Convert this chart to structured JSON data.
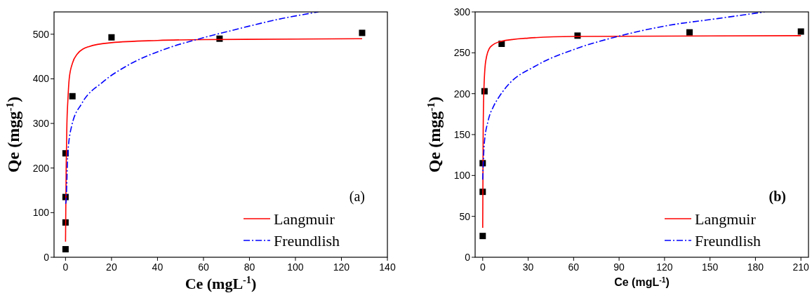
{
  "chart_data": [
    {
      "type": "scatter",
      "xlabel": "Ce (mgL$^{-1}$)",
      "ylabel": "Qe (mgg$^{-1}$)",
      "annotations": [
        "(a)"
      ],
      "xlim": [
        -5,
        140
      ],
      "ylim": [
        0,
        550
      ],
      "xticks": [
        0,
        20,
        40,
        60,
        80,
        100,
        120,
        140
      ],
      "yticks": [
        0,
        100,
        200,
        300,
        400,
        500
      ],
      "legend": "bottom right",
      "grid": false,
      "series": [
        {
          "marker": "square",
          "color": "#000000",
          "x": [
            0,
            0,
            0,
            0,
            3,
            20,
            67,
            129
          ],
          "values": [
            18,
            78,
            135,
            233,
            361,
            493,
            490,
            503
          ]
        },
        {
          "type": "line",
          "name": "Langmuir",
          "color": "#ff0000",
          "line_style": "solid",
          "x": [
            0,
            0.1,
            0.3,
            0.6,
            1,
            1.6,
            3,
            5,
            10,
            20,
            40,
            60,
            100,
            129
          ],
          "values": [
            35,
            100,
            210,
            300,
            350,
            400,
            435,
            455,
            472,
            481,
            486,
            488,
            489,
            490
          ]
        },
        {
          "type": "line",
          "name": "Freundlish",
          "color": "#0000ff",
          "line_style": "dashed",
          "x": [
            0,
            0.2,
            1,
            2.7,
            7.1,
            16,
            27,
            44,
            58.4,
            72,
            94,
            110
          ],
          "values": [
            120,
            124,
            233,
            295,
            345,
            392,
            430,
            468,
            490,
            508,
            535,
            550
          ]
        }
      ]
    },
    {
      "type": "scatter",
      "xlabel": "Ce (mgL$^{-1}$)",
      "ylabel": "Qe (mgg$^{-1}$)",
      "annotations": [
        "(b)"
      ],
      "xlim": [
        -5,
        215
      ],
      "ylim": [
        0,
        300
      ],
      "xticks": [
        0,
        30,
        60,
        90,
        120,
        150,
        180,
        210
      ],
      "yticks": [
        0,
        50,
        100,
        150,
        200,
        250,
        300
      ],
      "legend": "bottom right",
      "grid": false,
      "series": [
        {
          "marker": "square",
          "color": "#000000",
          "x": [
            0,
            0,
            0,
            1.2,
            12.5,
            62.6,
            136.5,
            210
          ],
          "values": [
            26,
            80,
            115,
            203,
            261,
            271,
            275,
            276
          ]
        },
        {
          "type": "line",
          "name": "Langmuir",
          "color": "#ff0000",
          "line_style": "solid",
          "x": [
            0,
            0.3,
            0.7,
            2,
            5,
            12,
            30,
            60,
            210
          ],
          "values": [
            36,
            150,
            200,
            240,
            257,
            264,
            268,
            270,
            271
          ]
        },
        {
          "type": "line",
          "name": "Freundlish",
          "color": "#0000ff",
          "line_style": "dashed",
          "x": [
            0,
            1,
            3.6,
            7,
            10.4,
            15.5,
            36,
            61.6,
            87,
            121,
            155.5,
            186
          ],
          "values": [
            95,
            138,
            167,
            184,
            195,
            208,
            235,
            255,
            269,
            283,
            292,
            300
          ]
        }
      ]
    }
  ]
}
